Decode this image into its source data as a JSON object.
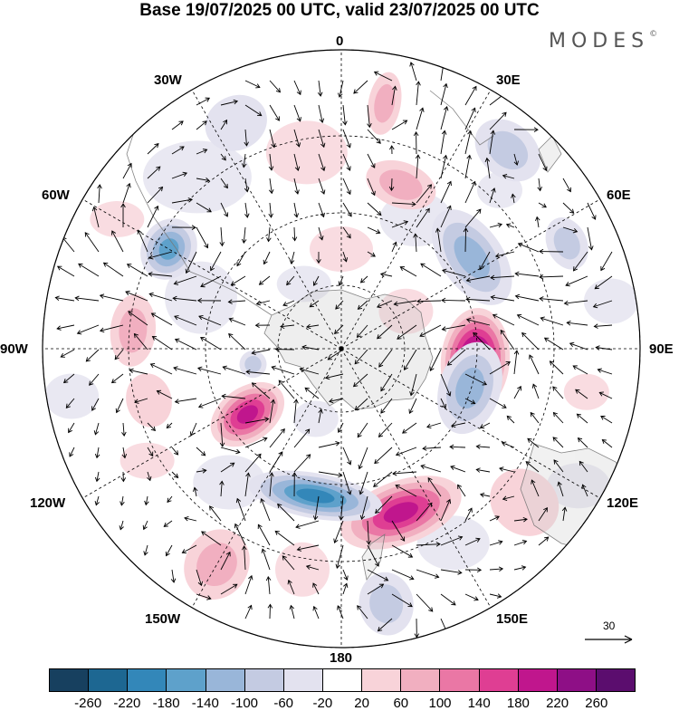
{
  "title": "Base 19/07/2025 00 UTC, valid 23/07/2025 00 UTC",
  "logo": "MODES",
  "logo_mark": "©",
  "lon_labels": {
    "top": "0",
    "ne": "30E",
    "ene": "60E",
    "e": "90E",
    "ese": "120E",
    "se": "150E",
    "bottom": "180",
    "sw": "150W",
    "wsw": "120W",
    "w": "90W",
    "wnw": "60W",
    "nw": "30W"
  },
  "reference_vector": {
    "label": "30"
  },
  "colorbar": {
    "ticks": [
      "-260",
      "-220",
      "-180",
      "-140",
      "-100",
      "-60",
      "-20",
      "20",
      "60",
      "100",
      "140",
      "180",
      "220",
      "260"
    ],
    "colors": [
      "#17405f",
      "#1d6792",
      "#3387b9",
      "#5ea1cb",
      "#99b6d9",
      "#c4cbe2",
      "#e3e2ef",
      "#ffffff",
      "#f8d3d9",
      "#f1afc0",
      "#ea77a5",
      "#df3e93",
      "#c0168d",
      "#8e0f86",
      "#5b0d6e"
    ]
  },
  "anomalies": [
    {
      "lon": 95,
      "lat": -63,
      "rx": 38,
      "ry": 58,
      "level": 14,
      "rot": 0
    },
    {
      "lon": 107,
      "lat": -63,
      "rx": 34,
      "ry": 52,
      "level": 4,
      "rot": 0
    },
    {
      "lon": 55,
      "lat": -58,
      "rx": 34,
      "ry": 60,
      "level": 4,
      "rot": 0
    },
    {
      "lon": 20,
      "lat": -55,
      "rx": 25,
      "ry": 40,
      "level": 9,
      "rot": 0
    },
    {
      "lon": 160,
      "lat": -55,
      "rx": 35,
      "ry": 70,
      "level": 12,
      "rot": 0
    },
    {
      "lon": -170,
      "lat": -60,
      "rx": 25,
      "ry": 75,
      "level": 2,
      "rot": 0
    },
    {
      "lon": -125,
      "lat": -67,
      "rx": 45,
      "ry": 30,
      "level": 12,
      "rot": 0
    },
    {
      "lon": -105,
      "lat": -50,
      "rx": 25,
      "ry": 30,
      "level": 8,
      "rot": 0
    },
    {
      "lon": -60,
      "lat": -50,
      "rx": 30,
      "ry": 35,
      "level": 3,
      "rot": 0
    },
    {
      "lon": -85,
      "lat": -48,
      "rx": 25,
      "ry": 40,
      "level": 9,
      "rot": 0
    },
    {
      "lon": -100,
      "lat": -72,
      "rx": 15,
      "ry": 15,
      "level": 5,
      "rot": 0
    },
    {
      "lon": 10,
      "lat": -40,
      "rx": 35,
      "ry": 18,
      "level": 9,
      "rot": 0
    },
    {
      "lon": 40,
      "lat": -38,
      "rx": 30,
      "ry": 40,
      "level": 5,
      "rot": 0
    },
    {
      "lon": 65,
      "lat": -40,
      "rx": 22,
      "ry": 30,
      "level": 5,
      "rot": 0
    },
    {
      "lon": -25,
      "lat": -40,
      "rx": 30,
      "ry": 35,
      "level": 6,
      "rot": 0
    },
    {
      "lon": -150,
      "lat": -40,
      "rx": 40,
      "ry": 35,
      "level": 9,
      "rot": 0
    },
    {
      "lon": 170,
      "lat": -38,
      "rx": 35,
      "ry": 30,
      "level": 5,
      "rot": 0
    },
    {
      "lon": 130,
      "lat": -42,
      "rx": 40,
      "ry": 35,
      "level": 8,
      "rot": 0
    }
  ]
}
